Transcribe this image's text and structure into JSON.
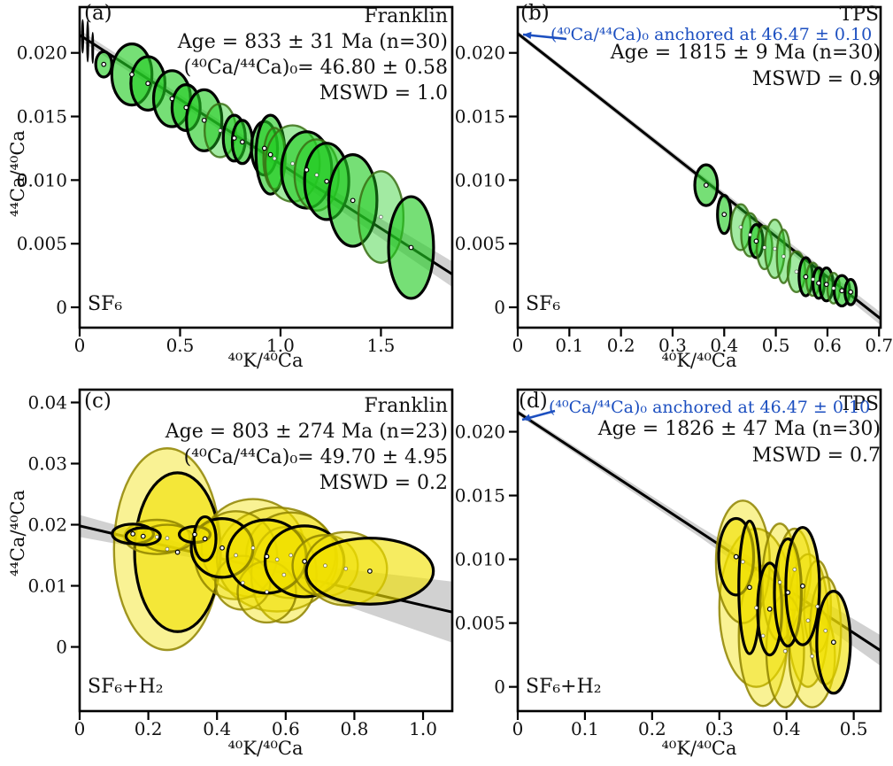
{
  "figure": {
    "background": "#ffffff",
    "colors": {
      "accent_blue": "#1c4fc0",
      "green_fill": "#22cc22",
      "yellow_fill": "#f0e000",
      "edge_black": "#000000",
      "light_edge_green": "#3a6e14",
      "light_edge_yellow": "#8f8400",
      "band_gray": "#c6c6c6",
      "isochron_line": "#000000",
      "text": "#111111"
    }
  },
  "chart_data": [
    {
      "type": "scatter",
      "id": "a",
      "tag": "(a)",
      "title": "Franklin",
      "gas": "SF₆",
      "ann_lines": [
        "Age = 833 ± 31 Ma (n=30)",
        "(⁴⁰Ca/⁴⁴Ca)₀= 46.80 ± 0.58",
        "MSWD = 1.0"
      ],
      "anchored": null,
      "xlabel": "⁴⁰K/⁴⁰Ca",
      "ylabel": "⁴⁴Ca/⁴⁰Ca",
      "xlim": [
        0,
        1.855
      ],
      "ylim": [
        -0.0016,
        0.0236
      ],
      "xticks": [
        {
          "v": 0,
          "t": "0"
        },
        {
          "v": 0.5,
          "t": "0.5"
        },
        {
          "v": 1.0,
          "t": "1.0"
        },
        {
          "v": 1.5,
          "t": "1.5"
        }
      ],
      "yticks": [
        {
          "v": 0,
          "t": "0"
        },
        {
          "v": 0.005,
          "t": "0.005"
        },
        {
          "v": 0.01,
          "t": "0.010"
        },
        {
          "v": 0.015,
          "t": "0.015"
        },
        {
          "v": 0.02,
          "t": "0.020"
        }
      ],
      "color": "green",
      "isochron": {
        "x1": 0,
        "y1": 0.0214,
        "x2": 1.855,
        "y2": 0.0026
      },
      "band": {
        "xm": 0.9,
        "w0": 0.0004,
        "wm": 0.00035,
        "w1": 0.001
      },
      "points": [
        [
          0.015,
          0.0213,
          0.004,
          0.0013,
          2
        ],
        [
          0.04,
          0.0209,
          0.004,
          0.0016,
          2
        ],
        [
          0.065,
          0.0204,
          0.0035,
          0.0012,
          2
        ],
        [
          0.12,
          0.0191,
          0.04,
          0.001,
          0
        ],
        [
          0.26,
          0.0183,
          0.1,
          0.0024,
          0
        ],
        [
          0.34,
          0.0176,
          0.085,
          0.0021,
          0
        ],
        [
          0.46,
          0.0164,
          0.092,
          0.0022,
          0
        ],
        [
          0.53,
          0.0157,
          0.07,
          0.0018,
          0
        ],
        [
          0.62,
          0.0147,
          0.088,
          0.0024,
          0
        ],
        [
          0.7,
          0.0139,
          0.078,
          0.0021,
          1
        ],
        [
          0.77,
          0.0133,
          0.055,
          0.0018,
          0
        ],
        [
          0.81,
          0.013,
          0.05,
          0.0017,
          0
        ],
        [
          0.92,
          0.0125,
          0.065,
          0.0021,
          0
        ],
        [
          0.95,
          0.012,
          0.072,
          0.0031,
          0
        ],
        [
          0.97,
          0.0117,
          0.055,
          0.0024,
          1
        ],
        [
          1.06,
          0.0113,
          0.135,
          0.003,
          1
        ],
        [
          1.13,
          0.0108,
          0.125,
          0.003,
          0
        ],
        [
          1.18,
          0.0104,
          0.11,
          0.0028,
          1
        ],
        [
          1.23,
          0.0099,
          0.11,
          0.003,
          0
        ],
        [
          1.36,
          0.0084,
          0.12,
          0.0036,
          0
        ],
        [
          1.5,
          0.0071,
          0.112,
          0.0036,
          1
        ],
        [
          1.65,
          0.0047,
          0.112,
          0.004,
          0
        ]
      ]
    },
    {
      "type": "scatter",
      "id": "b",
      "tag": "(b)",
      "title": "TPS",
      "gas": "SF₆",
      "ann_lines": [
        "Age = 1815 ± 9 Ma (n=30)",
        "MSWD = 0.9"
      ],
      "anchored": "(⁴⁰Ca/⁴⁴Ca)₀ anchored at 46.47 ± 0.10",
      "xlabel": "⁴⁰K/⁴⁰Ca",
      "ylabel": null,
      "xlim": [
        0,
        0.703
      ],
      "ylim": [
        -0.0016,
        0.0236
      ],
      "xticks": [
        {
          "v": 0,
          "t": "0"
        },
        {
          "v": 0.1,
          "t": "0.1"
        },
        {
          "v": 0.2,
          "t": "0.2"
        },
        {
          "v": 0.3,
          "t": "0.3"
        },
        {
          "v": 0.4,
          "t": "0.4"
        },
        {
          "v": 0.5,
          "t": "0.5"
        },
        {
          "v": 0.6,
          "t": "0.6"
        },
        {
          "v": 0.7,
          "t": "0.7"
        }
      ],
      "yticks": [
        {
          "v": 0,
          "t": "0"
        },
        {
          "v": 0.005,
          "t": "0.005"
        },
        {
          "v": 0.01,
          "t": "0.010"
        },
        {
          "v": 0.015,
          "t": "0.015"
        },
        {
          "v": 0.02,
          "t": "0.020"
        }
      ],
      "color": "green",
      "isochron": {
        "x1": 0,
        "y1": 0.02152,
        "x2": 0.703,
        "y2": -0.0009
      },
      "band": {
        "xm": 0.35,
        "w0": 0.0002,
        "wm": 0.00025,
        "w1": 0.0005
      },
      "points": [
        [
          0.365,
          0.0096,
          0.022,
          0.0016,
          0
        ],
        [
          0.4,
          0.0073,
          0.013,
          0.0015,
          0
        ],
        [
          0.432,
          0.0063,
          0.019,
          0.0018,
          1
        ],
        [
          0.45,
          0.0057,
          0.017,
          0.0017,
          1
        ],
        [
          0.462,
          0.0052,
          0.013,
          0.0013,
          0
        ],
        [
          0.478,
          0.0047,
          0.015,
          0.0017,
          1
        ],
        [
          0.498,
          0.0046,
          0.019,
          0.0023,
          1
        ],
        [
          0.515,
          0.004,
          0.013,
          0.0021,
          1
        ],
        [
          0.54,
          0.0028,
          0.017,
          0.0016,
          1
        ],
        [
          0.558,
          0.0024,
          0.013,
          0.0015,
          0
        ],
        [
          0.572,
          0.0022,
          0.013,
          0.0013,
          1
        ],
        [
          0.583,
          0.0019,
          0.011,
          0.0012,
          0
        ],
        [
          0.598,
          0.0018,
          0.013,
          0.0013,
          0
        ],
        [
          0.612,
          0.0015,
          0.012,
          0.0012,
          1
        ],
        [
          0.628,
          0.0013,
          0.015,
          0.0012,
          0
        ],
        [
          0.645,
          0.0012,
          0.011,
          0.001,
          0
        ]
      ]
    },
    {
      "type": "scatter",
      "id": "c",
      "tag": "(c)",
      "title": "Franklin",
      "gas": "SF₆+H₂",
      "ann_lines": [
        "Age = 803 ± 274 Ma (n=23)",
        "(⁴⁰Ca/⁴⁴Ca)₀= 49.70 ± 4.95",
        "MSWD = 0.2"
      ],
      "anchored": null,
      "xlabel": "⁴⁰K/⁴⁰Ca",
      "ylabel": "⁴⁴Ca/⁴⁰Ca",
      "xlim": [
        0,
        1.085
      ],
      "ylim": [
        -0.0105,
        0.0421
      ],
      "xticks": [
        {
          "v": 0,
          "t": "0"
        },
        {
          "v": 0.2,
          "t": "0.2"
        },
        {
          "v": 0.4,
          "t": "0.4"
        },
        {
          "v": 0.6,
          "t": "0.6"
        },
        {
          "v": 0.8,
          "t": "0.8"
        },
        {
          "v": 1.0,
          "t": "1.0"
        }
      ],
      "yticks": [
        {
          "v": 0,
          "t": "0"
        },
        {
          "v": 0.01,
          "t": "0.01"
        },
        {
          "v": 0.02,
          "t": "0.02"
        },
        {
          "v": 0.03,
          "t": "0.03"
        },
        {
          "v": 0.04,
          "t": "0.04"
        }
      ],
      "color": "yellow",
      "isochron": {
        "x1": 0,
        "y1": 0.0198,
        "x2": 1.085,
        "y2": 0.0057
      },
      "band": {
        "xm": 0.42,
        "w0": 0.0018,
        "wm": 0.0007,
        "w1": 0.005
      },
      "points": [
        [
          0.255,
          0.016,
          0.155,
          0.0165,
          1
        ],
        [
          0.285,
          0.0155,
          0.125,
          0.013,
          0
        ],
        [
          0.225,
          0.018,
          0.095,
          0.0028,
          1
        ],
        [
          0.255,
          0.0178,
          0.075,
          0.0022,
          1
        ],
        [
          0.155,
          0.0185,
          0.06,
          0.0016,
          0
        ],
        [
          0.185,
          0.0181,
          0.05,
          0.0014,
          0
        ],
        [
          0.505,
          0.0162,
          0.15,
          0.008,
          1
        ],
        [
          0.575,
          0.0143,
          0.175,
          0.0085,
          1
        ],
        [
          0.615,
          0.015,
          0.13,
          0.007,
          1
        ],
        [
          0.455,
          0.015,
          0.12,
          0.0072,
          1
        ],
        [
          0.595,
          0.0118,
          0.095,
          0.0078,
          1
        ],
        [
          0.475,
          0.0105,
          0.08,
          0.0044,
          1
        ],
        [
          0.545,
          0.009,
          0.085,
          0.005,
          1
        ],
        [
          0.415,
          0.0162,
          0.09,
          0.0048,
          0
        ],
        [
          0.335,
          0.0184,
          0.045,
          0.0013,
          0
        ],
        [
          0.365,
          0.0177,
          0.032,
          0.0036,
          0
        ],
        [
          0.545,
          0.0148,
          0.115,
          0.006,
          0
        ],
        [
          0.655,
          0.014,
          0.115,
          0.0058,
          0
        ],
        [
          0.715,
          0.0133,
          0.095,
          0.005,
          1
        ],
        [
          0.775,
          0.0128,
          0.12,
          0.006,
          1
        ],
        [
          0.845,
          0.0124,
          0.185,
          0.0054,
          0
        ]
      ]
    },
    {
      "type": "scatter",
      "id": "d",
      "tag": "(d)",
      "title": "TPS",
      "gas": "SF₆+H₂",
      "ann_lines": [
        "Age = 1826 ± 47 Ma (n=30)",
        "MSWD = 0.7"
      ],
      "anchored": "(⁴⁰Ca/⁴⁴Ca)₀ anchored at 46.47 ± 0.10",
      "xlabel": "⁴⁰K/⁴⁰Ca",
      "ylabel": null,
      "xlim": [
        0,
        0.54
      ],
      "ylim": [
        -0.0019,
        0.0233
      ],
      "xticks": [
        {
          "v": 0,
          "t": "0"
        },
        {
          "v": 0.1,
          "t": "0.1"
        },
        {
          "v": 0.2,
          "t": "0.2"
        },
        {
          "v": 0.3,
          "t": "0.3"
        },
        {
          "v": 0.4,
          "t": "0.4"
        },
        {
          "v": 0.5,
          "t": "0.5"
        }
      ],
      "yticks": [
        {
          "v": 0,
          "t": "0"
        },
        {
          "v": 0.005,
          "t": "0.005"
        },
        {
          "v": 0.01,
          "t": "0.010"
        },
        {
          "v": 0.015,
          "t": "0.015"
        },
        {
          "v": 0.02,
          "t": "0.020"
        }
      ],
      "color": "yellow",
      "isochron": {
        "x1": 0,
        "y1": 0.02152,
        "x2": 0.54,
        "y2": 0.00284
      },
      "band": {
        "xm": 0.27,
        "w0": 0.0002,
        "wm": 0.0004,
        "w1": 0.0012
      },
      "points": [
        [
          0.355,
          0.0062,
          0.055,
          0.0062,
          1
        ],
        [
          0.365,
          0.004,
          0.036,
          0.0055,
          1
        ],
        [
          0.335,
          0.0098,
          0.04,
          0.0048,
          1
        ],
        [
          0.39,
          0.0082,
          0.026,
          0.0046,
          1
        ],
        [
          0.412,
          0.0092,
          0.024,
          0.0032,
          1
        ],
        [
          0.432,
          0.0052,
          0.03,
          0.0052,
          1
        ],
        [
          0.446,
          0.0063,
          0.02,
          0.0036,
          1
        ],
        [
          0.398,
          0.0028,
          0.028,
          0.0044,
          1
        ],
        [
          0.438,
          0.0024,
          0.034,
          0.004,
          1
        ],
        [
          0.458,
          0.0044,
          0.023,
          0.0042,
          1
        ],
        [
          0.325,
          0.0102,
          0.026,
          0.003,
          0
        ],
        [
          0.345,
          0.0078,
          0.016,
          0.0052,
          0
        ],
        [
          0.375,
          0.0061,
          0.018,
          0.0036,
          0
        ],
        [
          0.402,
          0.0074,
          0.02,
          0.0042,
          0
        ],
        [
          0.424,
          0.0079,
          0.025,
          0.0046,
          0
        ],
        [
          0.47,
          0.0035,
          0.025,
          0.004,
          0
        ]
      ]
    }
  ]
}
